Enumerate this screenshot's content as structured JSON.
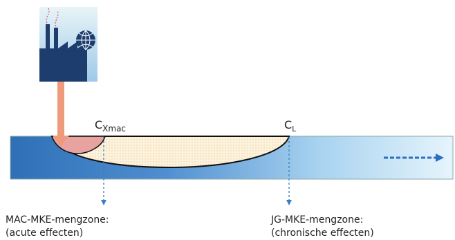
{
  "labels": {
    "c_xmac": {
      "main": "C",
      "sub": "Xmac"
    },
    "c_l": {
      "main": "C",
      "sub": "L"
    }
  },
  "zones": [
    {
      "title": "MAC-MKE-mengzone:",
      "note": "(acute effecten)"
    },
    {
      "title": "JG-MKE-mengzone:",
      "note": "(chronische effecten)"
    }
  ]
}
